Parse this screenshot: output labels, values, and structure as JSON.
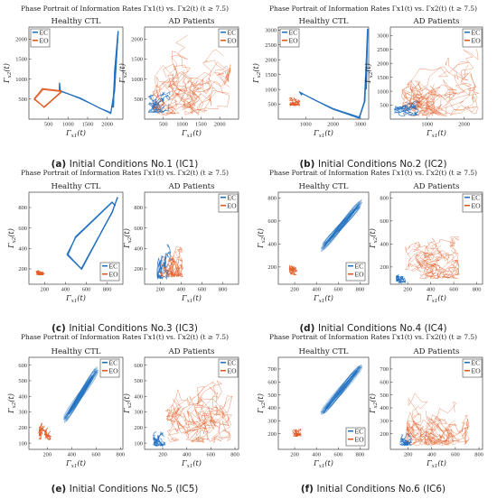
{
  "figure_title": "Phase Portrait of Information Rates Γx1(t) vs. Γx2(t) (t ≥ 7.5)",
  "x_axis_label": "Γx1(t)",
  "y_axis_label": "Γx2(t)",
  "legend_labels": [
    "EC",
    "EO"
  ],
  "panel_titles": [
    "Healthy CTL",
    "AD Patients"
  ],
  "colors": {
    "EC": "#1f6fbf",
    "EO": "#e0561d"
  },
  "captions": [
    {
      "letter": "(a)",
      "text": "Initial Conditions No.1 (IC1)"
    },
    {
      "letter": "(b)",
      "text": "Initial Conditions No.2 (IC2)"
    },
    {
      "letter": "(c)",
      "text": "Initial Conditions No.3 (IC3)"
    },
    {
      "letter": "(d)",
      "text": "Initial Conditions No.4 (IC4)"
    },
    {
      "letter": "(e)",
      "text": "Initial Conditions No.5 (IC5)"
    },
    {
      "letter": "(f)",
      "text": "Initial Conditions No.6 (IC6)"
    }
  ],
  "chart_data": [
    {
      "type": "line",
      "title": "Healthy CTL",
      "xlabel": "Γx1(t)",
      "ylabel": "Γx2(t)",
      "xlim": [
        0,
        2400
      ],
      "ylim": [
        0,
        2300
      ],
      "xticks": [
        500,
        1000,
        1500,
        2000
      ],
      "yticks": [
        500,
        1000,
        1500,
        2000
      ],
      "series": [
        {
          "name": "EC",
          "kind": "loop",
          "points": [
            [
              2150,
              300
            ],
            [
              2200,
              1200
            ],
            [
              2270,
              2200
            ],
            [
              2180,
              700
            ],
            [
              2080,
              150
            ],
            [
              1800,
              280
            ],
            [
              1300,
              520
            ],
            [
              800,
              700
            ],
            [
              780,
              900
            ],
            [
              780,
              720
            ]
          ]
        },
        {
          "name": "EO",
          "kind": "loop",
          "points": [
            [
              820,
              680
            ],
            [
              400,
              300
            ],
            [
              150,
              500
            ],
            [
              350,
              750
            ],
            [
              820,
              700
            ]
          ]
        }
      ]
    },
    {
      "type": "line",
      "title": "AD Patients",
      "xlabel": "Γx1(t)",
      "ylabel": "Γx2(t)",
      "xlim": [
        0,
        2500
      ],
      "ylim": [
        0,
        2300
      ],
      "xticks": [
        500,
        1000,
        1500,
        2000
      ],
      "yticks": [
        500,
        1000,
        1500,
        2000
      ],
      "series": [
        {
          "name": "EC",
          "kind": "cluster",
          "x_range": [
            100,
            700
          ],
          "y_range": [
            150,
            700
          ]
        },
        {
          "name": "EO",
          "kind": "spread",
          "x_range": [
            200,
            2300
          ],
          "y_range": [
            100,
            2100
          ]
        }
      ]
    },
    {
      "type": "line",
      "title": "Healthy CTL",
      "xlabel": "Γx1(t)",
      "ylabel": "Γx2(t)",
      "xlim": [
        0,
        3300
      ],
      "ylim": [
        0,
        3100
      ],
      "xticks": [
        1000,
        2000,
        3000
      ],
      "yticks": [
        500,
        1000,
        1500,
        2000,
        2500,
        3000
      ],
      "series": [
        {
          "name": "EC",
          "kind": "loop",
          "points": [
            [
              3200,
              1000
            ],
            [
              3250,
              3050
            ],
            [
              3150,
              600
            ],
            [
              2950,
              50
            ],
            [
              2000,
              350
            ],
            [
              1200,
              700
            ],
            [
              800,
              900
            ],
            [
              850,
              800
            ]
          ]
        },
        {
          "name": "EO",
          "kind": "cluster",
          "x_range": [
            400,
            800
          ],
          "y_range": [
            450,
            800
          ]
        }
      ]
    },
    {
      "type": "line",
      "title": "AD Patients",
      "xlabel": "Γx1(t)",
      "ylabel": "Γx2(t)",
      "xlim": [
        0,
        2500
      ],
      "ylim": [
        0,
        3300
      ],
      "xticks": [
        1000,
        2000
      ],
      "yticks": [
        500,
        1000,
        1500,
        2000,
        2500,
        3000
      ],
      "series": [
        {
          "name": "EC",
          "kind": "cluster",
          "x_range": [
            100,
            800
          ],
          "y_range": [
            100,
            700
          ]
        },
        {
          "name": "EO",
          "kind": "spread",
          "x_range": [
            300,
            2400
          ],
          "y_range": [
            100,
            2600
          ]
        }
      ]
    },
    {
      "type": "line",
      "title": "Healthy CTL",
      "xlabel": "Γx1(t)",
      "ylabel": "Γx2(t)",
      "xlim": [
        50,
        950
      ],
      "ylim": [
        50,
        950
      ],
      "xticks": [
        200,
        400,
        600,
        800
      ],
      "yticks": [
        200,
        400,
        600,
        800
      ],
      "series": [
        {
          "name": "EC",
          "kind": "loop",
          "points": [
            [
              900,
              900
            ],
            [
              850,
              760
            ],
            [
              550,
              200
            ],
            [
              420,
              340
            ],
            [
              500,
              510
            ],
            [
              850,
              850
            ],
            [
              880,
              820
            ]
          ]
        },
        {
          "name": "EO",
          "kind": "cluster",
          "x_range": [
            120,
            210
          ],
          "y_range": [
            140,
            190
          ]
        }
      ]
    },
    {
      "type": "line",
      "title": "AD Patients",
      "xlabel": "Γx1(t)",
      "ylabel": "Γx2(t)",
      "xlim": [
        50,
        950
      ],
      "ylim": [
        50,
        950
      ],
      "xticks": [
        200,
        400,
        600,
        800
      ],
      "yticks": [
        200,
        400,
        600,
        800
      ],
      "series": [
        {
          "name": "EC",
          "kind": "cluster",
          "x_range": [
            170,
            300
          ],
          "y_range": [
            100,
            450
          ]
        },
        {
          "name": "EO",
          "kind": "spread",
          "x_range": [
            200,
            420
          ],
          "y_range": [
            120,
            450
          ]
        }
      ]
    },
    {
      "type": "line",
      "title": "Healthy CTL",
      "xlabel": "Γx1(t)",
      "ylabel": "Γx2(t)",
      "xlim": [
        50,
        880
      ],
      "ylim": [
        50,
        850
      ],
      "xticks": [
        200,
        400,
        600,
        800
      ],
      "yticks": [
        200,
        400,
        600,
        800
      ],
      "series": [
        {
          "name": "EC",
          "kind": "band",
          "x_range": [
            400,
            860
          ],
          "y_range": [
            300,
            820
          ]
        },
        {
          "name": "EO",
          "kind": "cluster",
          "x_range": [
            150,
            220
          ],
          "y_range": [
            130,
            220
          ]
        }
      ]
    },
    {
      "type": "line",
      "title": "AD Patients",
      "xlabel": "Γx1(t)",
      "ylabel": "Γx2(t)",
      "xlim": [
        50,
        850
      ],
      "ylim": [
        50,
        850
      ],
      "xticks": [
        200,
        400,
        600,
        800
      ],
      "yticks": [
        200,
        400,
        600,
        800
      ],
      "series": [
        {
          "name": "EC",
          "kind": "cluster",
          "x_range": [
            100,
            180
          ],
          "y_range": [
            60,
            180
          ]
        },
        {
          "name": "EO",
          "kind": "spread",
          "x_range": [
            180,
            650
          ],
          "y_range": [
            100,
            520
          ]
        }
      ]
    },
    {
      "type": "line",
      "title": "Healthy CTL",
      "xlabel": "Γx1(t)",
      "ylabel": "Γx2(t)",
      "xlim": [
        50,
        820
      ],
      "ylim": [
        60,
        650
      ],
      "xticks": [
        200,
        400,
        600,
        800
      ],
      "yticks": [
        100,
        200,
        300,
        400,
        500,
        600
      ],
      "series": [
        {
          "name": "EC",
          "kind": "band",
          "x_range": [
            300,
            650
          ],
          "y_range": [
            200,
            620
          ]
        },
        {
          "name": "EO",
          "kind": "cluster",
          "x_range": [
            130,
            250
          ],
          "y_range": [
            120,
            230
          ]
        }
      ]
    },
    {
      "type": "line",
      "title": "AD Patients",
      "xlabel": "Γx1(t)",
      "ylabel": "Γx2(t)",
      "xlim": [
        50,
        830
      ],
      "ylim": [
        60,
        650
      ],
      "xticks": [
        200,
        400,
        600,
        800
      ],
      "yticks": [
        100,
        200,
        300,
        400,
        500,
        600
      ],
      "series": [
        {
          "name": "EC",
          "kind": "cluster",
          "x_range": [
            120,
            220
          ],
          "y_range": [
            80,
            210
          ]
        },
        {
          "name": "EO",
          "kind": "spread",
          "x_range": [
            220,
            780
          ],
          "y_range": [
            100,
            620
          ]
        }
      ]
    },
    {
      "type": "line",
      "title": "Healthy CTL",
      "xlabel": "Γx1(t)",
      "ylabel": "Γx2(t)",
      "xlim": [
        50,
        880
      ],
      "ylim": [
        80,
        790
      ],
      "xticks": [
        200,
        400,
        600,
        800
      ],
      "yticks": [
        200,
        300,
        400,
        500,
        600,
        700
      ],
      "series": [
        {
          "name": "EC",
          "kind": "band",
          "x_range": [
            400,
            860
          ],
          "y_range": [
            300,
            780
          ]
        },
        {
          "name": "EO",
          "kind": "cluster",
          "x_range": [
            180,
            260
          ],
          "y_range": [
            180,
            240
          ]
        }
      ]
    },
    {
      "type": "line",
      "title": "AD Patients",
      "xlabel": "Γx1(t)",
      "ylabel": "Γx2(t)",
      "xlim": [
        50,
        830
      ],
      "ylim": [
        80,
        790
      ],
      "xticks": [
        200,
        400,
        600,
        800
      ],
      "yticks": [
        200,
        300,
        400,
        500,
        600,
        700
      ],
      "series": [
        {
          "name": "EC",
          "kind": "cluster",
          "x_range": [
            130,
            230
          ],
          "y_range": [
            110,
            220
          ]
        },
        {
          "name": "EO",
          "kind": "spread",
          "x_range": [
            180,
            720
          ],
          "y_range": [
            110,
            640
          ]
        }
      ]
    }
  ]
}
